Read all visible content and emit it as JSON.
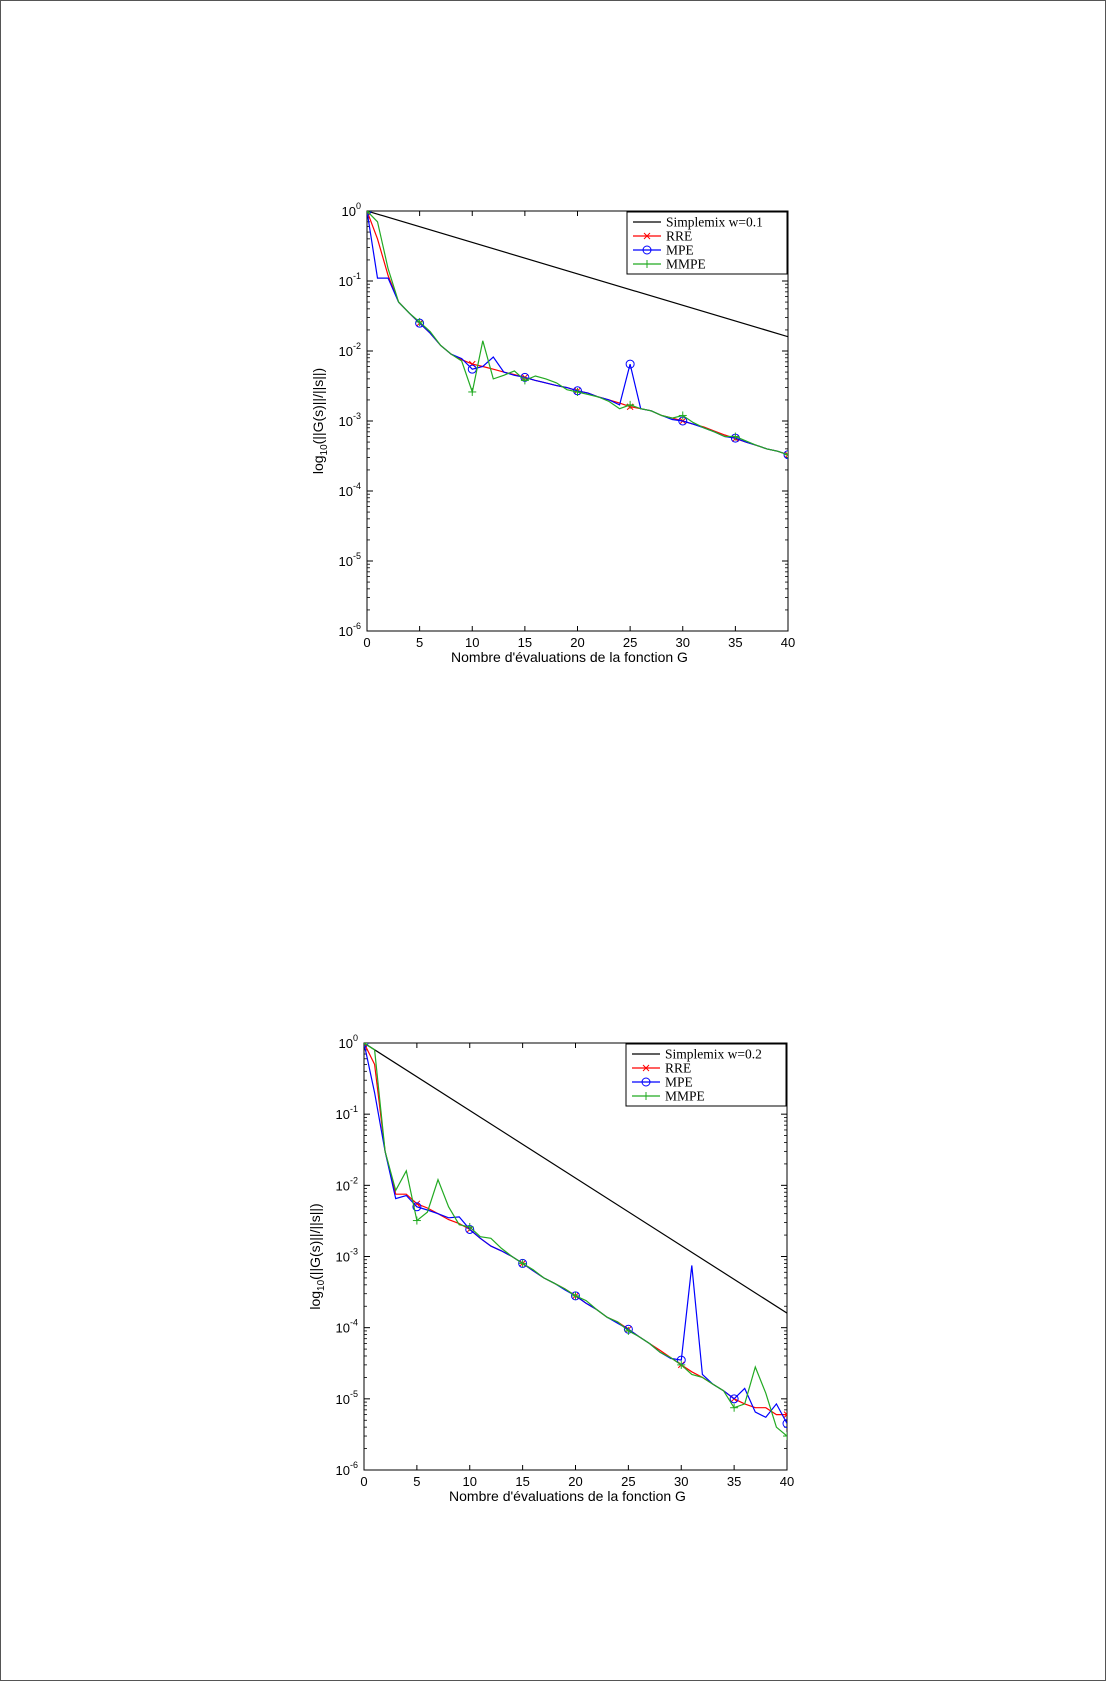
{
  "chart_data": [
    {
      "type": "line",
      "yscale": "log",
      "xlim": [
        0,
        40
      ],
      "ylim": [
        1e-06,
        1
      ],
      "xticks": [
        0,
        5,
        10,
        15,
        20,
        25,
        30,
        35,
        40
      ],
      "yticks": [
        {
          "base": "10",
          "exp": "0"
        },
        {
          "base": "10",
          "exp": "-1"
        },
        {
          "base": "10",
          "exp": "-2"
        },
        {
          "base": "10",
          "exp": "-3"
        },
        {
          "base": "10",
          "exp": "-4"
        },
        {
          "base": "10",
          "exp": "-5"
        },
        {
          "base": "10",
          "exp": "-6"
        }
      ],
      "xlabel": "Nombre d'évaluations de la fonction G",
      "ylabel": {
        "prefix": "log",
        "sub": "10",
        "suffix": "(||G(s)||/||s||)"
      },
      "grid": false,
      "legend_position": "top-right",
      "series": [
        {
          "name": "Simplemix w=0.1",
          "color": "#000000",
          "marker": "none",
          "x": [
            0,
            40
          ],
          "y": [
            1,
            0.016
          ]
        },
        {
          "name": "RRE",
          "color": "#ff0000",
          "marker": "x",
          "x": [
            0,
            1,
            2,
            3,
            4,
            5,
            6,
            7,
            8,
            9,
            10,
            11,
            12,
            13,
            14,
            15,
            16,
            17,
            18,
            19,
            20,
            21,
            22,
            23,
            24,
            25,
            26,
            27,
            28,
            29,
            30,
            31,
            32,
            33,
            34,
            35,
            36,
            37,
            38,
            39,
            40
          ],
          "y": [
            1,
            0.4,
            0.12,
            0.05,
            0.035,
            0.025,
            0.018,
            0.012,
            0.009,
            0.0075,
            0.0065,
            0.006,
            0.0055,
            0.005,
            0.0046,
            0.0042,
            0.0038,
            0.0035,
            0.0032,
            0.003,
            0.0027,
            0.0025,
            0.0022,
            0.002,
            0.0018,
            0.0016,
            0.0015,
            0.0014,
            0.0012,
            0.0011,
            0.001,
            0.0009,
            0.00082,
            0.00072,
            0.00063,
            0.00056,
            0.0005,
            0.00045,
            0.0004,
            0.00037,
            0.00033
          ],
          "marker_every": 5
        },
        {
          "name": "MPE",
          "color": "#0000ff",
          "marker": "o",
          "x": [
            0,
            1,
            2,
            3,
            4,
            5,
            6,
            7,
            8,
            9,
            10,
            11,
            12,
            13,
            14,
            15,
            16,
            17,
            18,
            19,
            20,
            21,
            22,
            23,
            24,
            25,
            26,
            27,
            28,
            29,
            30,
            31,
            32,
            33,
            34,
            35,
            36,
            37,
            38,
            39,
            40
          ],
          "y": [
            1,
            0.11,
            0.11,
            0.05,
            0.035,
            0.025,
            0.018,
            0.012,
            0.009,
            0.0078,
            0.0055,
            0.006,
            0.0082,
            0.005,
            0.0045,
            0.0042,
            0.0038,
            0.0035,
            0.0032,
            0.003,
            0.0027,
            0.0025,
            0.0022,
            0.002,
            0.0017,
            0.0065,
            0.0015,
            0.0014,
            0.0012,
            0.00105,
            0.001,
            0.0009,
            0.0008,
            0.0007,
            0.0006,
            0.00057,
            0.0005,
            0.00045,
            0.0004,
            0.00037,
            0.00033
          ],
          "marker_every": 5
        },
        {
          "name": "MMPE",
          "color": "#22aa22",
          "marker": "+",
          "x": [
            0,
            1,
            2,
            3,
            4,
            5,
            6,
            7,
            8,
            9,
            10,
            11,
            12,
            13,
            14,
            15,
            16,
            17,
            18,
            19,
            20,
            21,
            22,
            23,
            24,
            25,
            26,
            27,
            28,
            29,
            30,
            31,
            32,
            33,
            34,
            35,
            36,
            37,
            38,
            39,
            40
          ],
          "y": [
            1,
            0.7,
            0.15,
            0.05,
            0.035,
            0.026,
            0.019,
            0.012,
            0.009,
            0.0072,
            0.0026,
            0.014,
            0.004,
            0.0045,
            0.0052,
            0.0038,
            0.0044,
            0.004,
            0.0035,
            0.0028,
            0.0026,
            0.0024,
            0.0022,
            0.0019,
            0.0015,
            0.0017,
            0.0015,
            0.0014,
            0.0012,
            0.0011,
            0.0012,
            0.00095,
            0.0008,
            0.0007,
            0.0006,
            0.0006,
            0.00052,
            0.00045,
            0.0004,
            0.00037,
            0.00033
          ],
          "marker_every": 5
        }
      ]
    },
    {
      "type": "line",
      "yscale": "log",
      "xlim": [
        0,
        40
      ],
      "ylim": [
        1e-06,
        1
      ],
      "xticks": [
        0,
        5,
        10,
        15,
        20,
        25,
        30,
        35,
        40
      ],
      "yticks": [
        {
          "base": "10",
          "exp": "0"
        },
        {
          "base": "10",
          "exp": "-1"
        },
        {
          "base": "10",
          "exp": "-2"
        },
        {
          "base": "10",
          "exp": "-3"
        },
        {
          "base": "10",
          "exp": "-4"
        },
        {
          "base": "10",
          "exp": "-5"
        },
        {
          "base": "10",
          "exp": "-6"
        }
      ],
      "xlabel": "Nombre d'évaluations de la fonction G",
      "ylabel": {
        "prefix": "log",
        "sub": "10",
        "suffix": "(||G(s)||/||s||)"
      },
      "grid": false,
      "legend_position": "top-right",
      "series": [
        {
          "name": "Simplemix w=0.2",
          "color": "#000000",
          "marker": "none",
          "x": [
            0,
            40
          ],
          "y": [
            1,
            0.00016
          ]
        },
        {
          "name": "RRE",
          "color": "#ff0000",
          "marker": "x",
          "x": [
            0,
            1,
            2,
            3,
            4,
            5,
            6,
            7,
            8,
            9,
            10,
            11,
            12,
            13,
            14,
            15,
            16,
            17,
            18,
            19,
            20,
            21,
            22,
            23,
            24,
            25,
            26,
            27,
            28,
            29,
            30,
            31,
            32,
            33,
            34,
            35,
            36,
            37,
            38,
            39,
            40
          ],
          "y": [
            1,
            0.5,
            0.03,
            0.0075,
            0.0075,
            0.0055,
            0.0048,
            0.004,
            0.0033,
            0.0029,
            0.0024,
            0.0018,
            0.0014,
            0.0012,
            0.001,
            0.0008,
            0.00063,
            0.0005,
            0.00042,
            0.00035,
            0.00028,
            0.00022,
            0.00018,
            0.00014,
            0.00012,
            9.5e-05,
            7.5e-05,
            6e-05,
            4.8e-05,
            3.8e-05,
            3e-05,
            2.4e-05,
            2e-05,
            1.6e-05,
            1.3e-05,
            1e-05,
            8.5e-06,
            7.5e-06,
            7.5e-06,
            6e-06,
            6e-06
          ],
          "marker_every": 5
        },
        {
          "name": "MPE",
          "color": "#0000ff",
          "marker": "o",
          "x": [
            0,
            1,
            2,
            3,
            4,
            5,
            6,
            7,
            8,
            9,
            10,
            11,
            12,
            13,
            14,
            15,
            16,
            17,
            18,
            19,
            20,
            21,
            22,
            23,
            24,
            25,
            26,
            27,
            28,
            29,
            30,
            31,
            32,
            33,
            34,
            35,
            36,
            37,
            38,
            39,
            40
          ],
          "y": [
            1,
            0.2,
            0.03,
            0.0065,
            0.0072,
            0.005,
            0.0045,
            0.004,
            0.0035,
            0.0036,
            0.0024,
            0.0018,
            0.0014,
            0.0012,
            0.001,
            0.0008,
            0.00063,
            0.0005,
            0.00042,
            0.00034,
            0.00028,
            0.00022,
            0.00018,
            0.00014,
            0.000115,
            9.5e-05,
            7.5e-05,
            6e-05,
            4.5e-05,
            3.7e-05,
            3.5e-05,
            0.00075,
            2.2e-05,
            1.6e-05,
            1.3e-05,
            1e-05,
            1.4e-05,
            6.5e-06,
            5.5e-06,
            8.5e-06,
            4.5e-06
          ],
          "marker_every": 5
        },
        {
          "name": "MMPE",
          "color": "#22aa22",
          "marker": "+",
          "x": [
            0,
            1,
            2,
            3,
            4,
            5,
            6,
            7,
            8,
            9,
            10,
            11,
            12,
            13,
            14,
            15,
            16,
            17,
            18,
            19,
            20,
            21,
            22,
            23,
            24,
            25,
            26,
            27,
            28,
            29,
            30,
            31,
            32,
            33,
            34,
            35,
            36,
            37,
            38,
            39,
            40
          ],
          "y": [
            1,
            0.8,
            0.03,
            0.0085,
            0.016,
            0.0032,
            0.0042,
            0.012,
            0.005,
            0.0028,
            0.0026,
            0.0019,
            0.0018,
            0.0013,
            0.001,
            0.0008,
            0.00065,
            0.0005,
            0.00042,
            0.00035,
            0.00028,
            0.00024,
            0.00018,
            0.00014,
            0.00012,
            9e-05,
            7.5e-05,
            6e-05,
            4.5e-05,
            3.8e-05,
            3e-05,
            2.2e-05,
            2e-05,
            1.6e-05,
            1.3e-05,
            7.5e-06,
            8.5e-06,
            2.8e-05,
            1.2e-05,
            4e-06,
            3e-06
          ],
          "marker_every": 5
        }
      ]
    }
  ]
}
